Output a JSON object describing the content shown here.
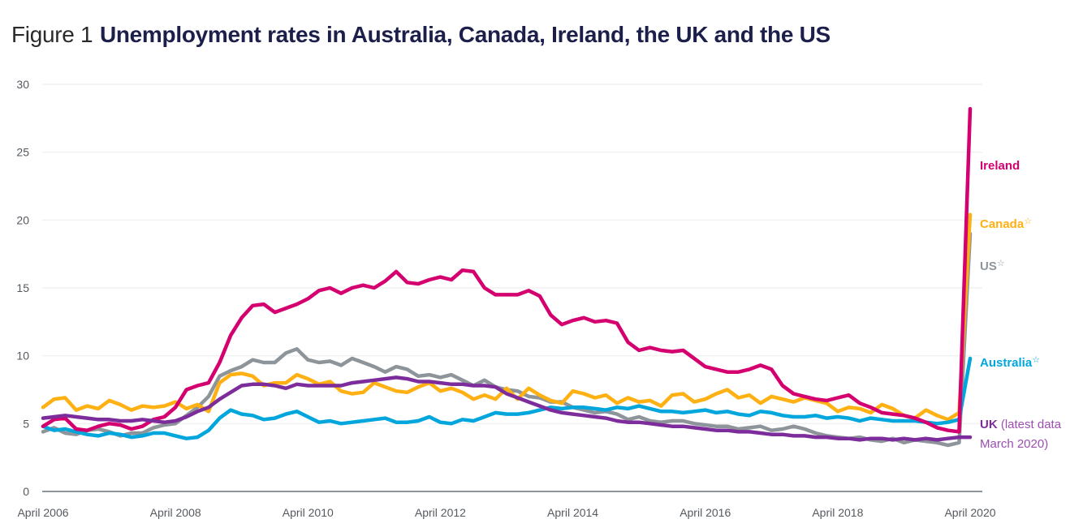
{
  "figure": {
    "prefix": "Figure 1",
    "title": "Unemployment rates in Australia, Canada, Ireland, the UK and the US"
  },
  "chart_data": {
    "type": "line",
    "title": "Unemployment rates in Australia, Canada, Ireland, the UK and the US",
    "xlabel": "",
    "ylabel": "",
    "ylim": [
      0,
      30
    ],
    "yticks": [
      0,
      5,
      10,
      15,
      20,
      25,
      30
    ],
    "xtick_labels": [
      "April 2006",
      "April 2008",
      "April 2010",
      "April 2012",
      "April 2014",
      "April 2016",
      "April 2018",
      "April 2020"
    ],
    "x_range": [
      "April 2006",
      "April 2020"
    ],
    "x_step": "2 months",
    "grid": true,
    "legend": "right (direct labels)",
    "series": [
      {
        "name": "Ireland",
        "label": "Ireland",
        "star": false,
        "color": "#d4006f",
        "values": [
          4.8,
          5.3,
          5.4,
          4.6,
          4.5,
          4.8,
          5.0,
          4.9,
          4.6,
          4.8,
          5.3,
          5.5,
          6.2,
          7.5,
          7.8,
          8.0,
          9.5,
          11.5,
          12.8,
          13.7,
          13.8,
          13.2,
          13.5,
          13.8,
          14.2,
          14.8,
          15.0,
          14.6,
          15.0,
          15.2,
          15.0,
          15.5,
          16.2,
          15.4,
          15.3,
          15.6,
          15.8,
          15.6,
          16.3,
          16.2,
          15.0,
          14.5,
          14.5,
          14.5,
          14.8,
          14.4,
          13.0,
          12.3,
          12.6,
          12.8,
          12.5,
          12.6,
          12.4,
          11.0,
          10.4,
          10.6,
          10.4,
          10.3,
          10.4,
          9.8,
          9.2,
          9.0,
          8.8,
          8.8,
          9.0,
          9.3,
          9.0,
          7.8,
          7.2,
          7.0,
          6.8,
          6.7,
          6.9,
          7.1,
          6.5,
          6.2,
          5.8,
          5.7,
          5.6,
          5.4,
          5.1,
          4.7,
          4.5,
          4.4,
          28.2
        ]
      },
      {
        "name": "Canada",
        "label": "Canada",
        "star": true,
        "color": "#ffb012",
        "values": [
          6.2,
          6.8,
          6.9,
          6.0,
          6.3,
          6.1,
          6.7,
          6.4,
          6.0,
          6.3,
          6.2,
          6.3,
          6.6,
          6.1,
          6.4,
          5.9,
          8.0,
          8.6,
          8.7,
          8.5,
          7.8,
          8.0,
          8.0,
          8.6,
          8.3,
          7.9,
          8.1,
          7.4,
          7.2,
          7.3,
          8.0,
          7.7,
          7.4,
          7.3,
          7.7,
          8.0,
          7.4,
          7.6,
          7.3,
          6.8,
          7.1,
          6.8,
          7.6,
          6.8,
          7.6,
          7.1,
          6.7,
          6.5,
          7.4,
          7.2,
          6.9,
          7.1,
          6.5,
          6.9,
          6.6,
          6.7,
          6.3,
          7.1,
          7.2,
          6.6,
          6.8,
          7.2,
          7.5,
          6.9,
          7.1,
          6.5,
          7.0,
          6.8,
          6.6,
          6.9,
          6.7,
          6.5,
          5.9,
          6.2,
          6.1,
          5.8,
          6.4,
          6.1,
          5.6,
          5.4,
          6.0,
          5.6,
          5.3,
          5.8,
          20.4
        ]
      },
      {
        "name": "US",
        "label": "US",
        "star": true,
        "color": "#8e959a",
        "values": [
          4.4,
          4.7,
          4.3,
          4.2,
          4.5,
          4.6,
          4.4,
          4.1,
          4.3,
          4.3,
          4.7,
          4.9,
          5.0,
          5.6,
          6.2,
          7.0,
          8.5,
          8.9,
          9.2,
          9.7,
          9.5,
          9.5,
          10.2,
          10.5,
          9.7,
          9.5,
          9.6,
          9.3,
          9.8,
          9.5,
          9.2,
          8.8,
          9.2,
          9.0,
          8.5,
          8.6,
          8.4,
          8.6,
          8.2,
          7.8,
          8.2,
          7.7,
          7.5,
          7.4,
          7.0,
          6.9,
          6.6,
          6.6,
          6.2,
          6.0,
          5.8,
          5.9,
          5.7,
          5.3,
          5.5,
          5.2,
          5.1,
          5.2,
          5.2,
          5.0,
          4.9,
          4.8,
          4.8,
          4.6,
          4.7,
          4.8,
          4.5,
          4.6,
          4.8,
          4.6,
          4.3,
          4.1,
          4.0,
          3.9,
          4.0,
          3.8,
          3.7,
          3.9,
          3.6,
          3.8,
          3.7,
          3.6,
          3.4,
          3.6,
          19.0
        ]
      },
      {
        "name": "Australia",
        "label": "Australia",
        "star": true,
        "color": "#00a6dc",
        "values": [
          4.8,
          4.5,
          4.6,
          4.4,
          4.2,
          4.1,
          4.3,
          4.2,
          4.0,
          4.1,
          4.3,
          4.3,
          4.1,
          3.9,
          4.0,
          4.5,
          5.4,
          6.0,
          5.7,
          5.6,
          5.3,
          5.4,
          5.7,
          5.9,
          5.5,
          5.1,
          5.2,
          5.0,
          5.1,
          5.2,
          5.3,
          5.4,
          5.1,
          5.1,
          5.2,
          5.5,
          5.1,
          5.0,
          5.3,
          5.2,
          5.5,
          5.8,
          5.7,
          5.7,
          5.8,
          6.0,
          6.2,
          6.1,
          6.2,
          6.2,
          6.1,
          6.0,
          6.2,
          6.1,
          6.3,
          6.1,
          5.9,
          5.9,
          5.8,
          5.9,
          6.0,
          5.8,
          5.9,
          5.7,
          5.6,
          5.9,
          5.8,
          5.6,
          5.5,
          5.5,
          5.6,
          5.4,
          5.5,
          5.4,
          5.2,
          5.4,
          5.3,
          5.2,
          5.2,
          5.2,
          5.1,
          5.0,
          5.1,
          5.3,
          9.8
        ]
      },
      {
        "name": "UK",
        "label": "UK",
        "sublabel": "(latest data March 2020)",
        "star": false,
        "color": "#7d2d9b",
        "values": [
          5.4,
          5.5,
          5.6,
          5.5,
          5.4,
          5.3,
          5.3,
          5.2,
          5.2,
          5.3,
          5.2,
          5.1,
          5.2,
          5.5,
          5.9,
          6.2,
          6.8,
          7.3,
          7.8,
          7.9,
          7.9,
          7.8,
          7.6,
          7.9,
          7.8,
          7.8,
          7.8,
          7.8,
          8.0,
          8.1,
          8.2,
          8.3,
          8.4,
          8.3,
          8.1,
          8.1,
          8.0,
          7.9,
          7.9,
          7.8,
          7.8,
          7.7,
          7.2,
          6.9,
          6.6,
          6.3,
          6.0,
          5.8,
          5.7,
          5.6,
          5.5,
          5.4,
          5.2,
          5.1,
          5.1,
          5.0,
          4.9,
          4.8,
          4.8,
          4.7,
          4.6,
          4.5,
          4.5,
          4.4,
          4.4,
          4.3,
          4.2,
          4.2,
          4.1,
          4.1,
          4.0,
          4.0,
          3.9,
          3.9,
          3.8,
          3.9,
          3.9,
          3.8,
          3.9,
          3.8,
          3.9,
          3.8,
          3.9,
          4.0,
          4.0
        ]
      }
    ]
  }
}
